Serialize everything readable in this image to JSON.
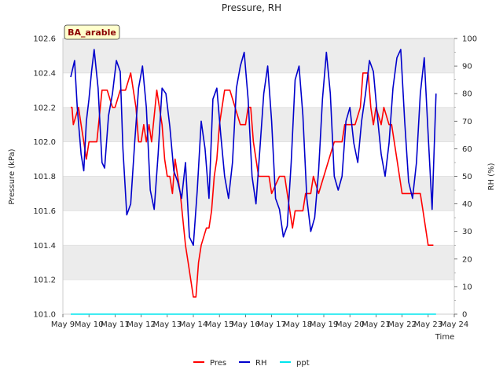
{
  "chart_data": {
    "type": "line",
    "title": "Pressure, RH",
    "xlabel": "Time",
    "ylabel_left": "Pressure (kPa)",
    "ylabel_right": "RH (%)",
    "badge": "BA_arable",
    "x_ticks": [
      "May 9",
      "May 10",
      "May 11",
      "May 12",
      "May 13",
      "May 14",
      "May 15",
      "May 16",
      "May 17",
      "May 18",
      "May 19",
      "May 20",
      "May 21",
      "May 22",
      "May 23",
      "May 24"
    ],
    "xlim": [
      9,
      24
    ],
    "ylim_left": [
      101.0,
      102.6
    ],
    "ylim_right": [
      0,
      100
    ],
    "y_ticks_left": [
      "101.0",
      "101.2",
      "101.4",
      "101.6",
      "101.8",
      "102.0",
      "102.2",
      "102.4",
      "102.6"
    ],
    "y_ticks_right": [
      "0",
      "10",
      "20",
      "30",
      "40",
      "50",
      "60",
      "70",
      "80",
      "90",
      "100"
    ],
    "grid": true,
    "legend_position": "bottom-center",
    "colors": {
      "Pres": "#ff0000",
      "RH": "#0000cc",
      "ppt": "#00e5ee",
      "band": "#ececec",
      "badge_fill": "#ffffcc"
    },
    "series": [
      {
        "name": "Pres",
        "axis": "left",
        "x": [
          9.3,
          9.35,
          9.4,
          9.6,
          9.7,
          9.8,
          9.9,
          10.0,
          10.1,
          10.3,
          10.5,
          10.7,
          10.9,
          11.0,
          11.2,
          11.4,
          11.6,
          11.8,
          11.9,
          12.0,
          12.1,
          12.2,
          12.3,
          12.4,
          12.6,
          12.7,
          12.8,
          12.9,
          13.0,
          13.1,
          13.2,
          13.3,
          13.5,
          13.7,
          13.8,
          13.9,
          14.0,
          14.1,
          14.2,
          14.3,
          14.5,
          14.6,
          14.7,
          14.8,
          14.9,
          15.0,
          15.2,
          15.4,
          15.6,
          15.8,
          15.9,
          16.0,
          16.1,
          16.2,
          16.3,
          16.5,
          16.7,
          16.9,
          17.0,
          17.3,
          17.5,
          17.7,
          17.8,
          17.9,
          18.0,
          18.2,
          18.3,
          18.5,
          18.6,
          18.8,
          19.0,
          19.2,
          19.4,
          19.5,
          19.7,
          19.8,
          20.0,
          20.2,
          20.4,
          20.5,
          20.7,
          20.8,
          20.9,
          21.0,
          21.2,
          21.3,
          21.5,
          21.6,
          21.8,
          22.0,
          22.2,
          22.4,
          22.6,
          22.7,
          22.8,
          22.9,
          23.0,
          23.2
        ],
        "values": [
          102.2,
          102.2,
          102.1,
          102.2,
          102.1,
          102.0,
          101.9,
          102.0,
          102.0,
          102.0,
          102.3,
          102.3,
          102.2,
          102.2,
          102.3,
          102.3,
          102.4,
          102.2,
          102.0,
          102.0,
          102.1,
          102.0,
          102.1,
          102.0,
          102.3,
          102.2,
          102.1,
          101.9,
          101.8,
          101.8,
          101.7,
          101.9,
          101.7,
          101.4,
          101.3,
          101.2,
          101.1,
          101.1,
          101.3,
          101.4,
          101.5,
          101.5,
          101.6,
          101.8,
          101.9,
          102.1,
          102.3,
          102.3,
          102.2,
          102.1,
          102.1,
          102.1,
          102.2,
          102.2,
          102.0,
          101.8,
          101.8,
          101.8,
          101.7,
          101.8,
          101.8,
          101.6,
          101.5,
          101.6,
          101.6,
          101.6,
          101.7,
          101.7,
          101.8,
          101.7,
          101.8,
          101.9,
          102.0,
          102.0,
          102.0,
          102.1,
          102.1,
          102.1,
          102.2,
          102.4,
          102.4,
          102.2,
          102.1,
          102.2,
          102.1,
          102.2,
          102.1,
          102.1,
          101.9,
          101.7,
          101.7,
          101.7,
          101.7,
          101.7,
          101.6,
          101.5,
          101.4,
          101.4
        ]
      },
      {
        "name": "RH",
        "axis": "right",
        "x": [
          9.3,
          9.45,
          9.55,
          9.7,
          9.8,
          9.9,
          10.0,
          10.1,
          10.2,
          10.35,
          10.5,
          10.6,
          10.75,
          10.9,
          11.05,
          11.2,
          11.3,
          11.45,
          11.6,
          11.75,
          11.9,
          12.05,
          12.2,
          12.35,
          12.5,
          12.65,
          12.8,
          12.95,
          13.1,
          13.25,
          13.4,
          13.55,
          13.7,
          13.85,
          14.0,
          14.15,
          14.3,
          14.45,
          14.6,
          14.75,
          14.9,
          15.05,
          15.2,
          15.35,
          15.5,
          15.65,
          15.8,
          15.95,
          16.1,
          16.25,
          16.4,
          16.55,
          16.7,
          16.85,
          17.0,
          17.15,
          17.3,
          17.45,
          17.6,
          17.75,
          17.9,
          18.05,
          18.2,
          18.35,
          18.5,
          18.65,
          18.8,
          18.95,
          19.1,
          19.25,
          19.4,
          19.55,
          19.7,
          19.85,
          20.0,
          20.15,
          20.3,
          20.45,
          20.6,
          20.75,
          20.9,
          21.05,
          21.2,
          21.35,
          21.5,
          21.65,
          21.8,
          21.95,
          22.1,
          22.25,
          22.4,
          22.55,
          22.7,
          22.85,
          23.0,
          23.15,
          23.3
        ],
        "values": [
          86,
          92,
          75,
          58,
          52,
          70,
          78,
          88,
          96,
          82,
          55,
          53,
          72,
          80,
          92,
          88,
          60,
          36,
          40,
          62,
          82,
          90,
          75,
          45,
          38,
          58,
          82,
          80,
          68,
          52,
          48,
          42,
          55,
          28,
          25,
          45,
          70,
          60,
          42,
          78,
          82,
          65,
          50,
          42,
          55,
          82,
          90,
          95,
          78,
          50,
          40,
          60,
          80,
          90,
          70,
          42,
          38,
          28,
          32,
          55,
          85,
          90,
          72,
          42,
          30,
          35,
          52,
          78,
          95,
          80,
          50,
          45,
          50,
          70,
          75,
          62,
          55,
          70,
          80,
          92,
          88,
          72,
          58,
          50,
          62,
          82,
          93,
          96,
          70,
          48,
          42,
          55,
          80,
          93,
          65,
          38,
          80
        ]
      },
      {
        "name": "ppt",
        "axis": "right",
        "x": [
          9.3,
          23.3
        ],
        "values": [
          0,
          0
        ]
      }
    ]
  }
}
